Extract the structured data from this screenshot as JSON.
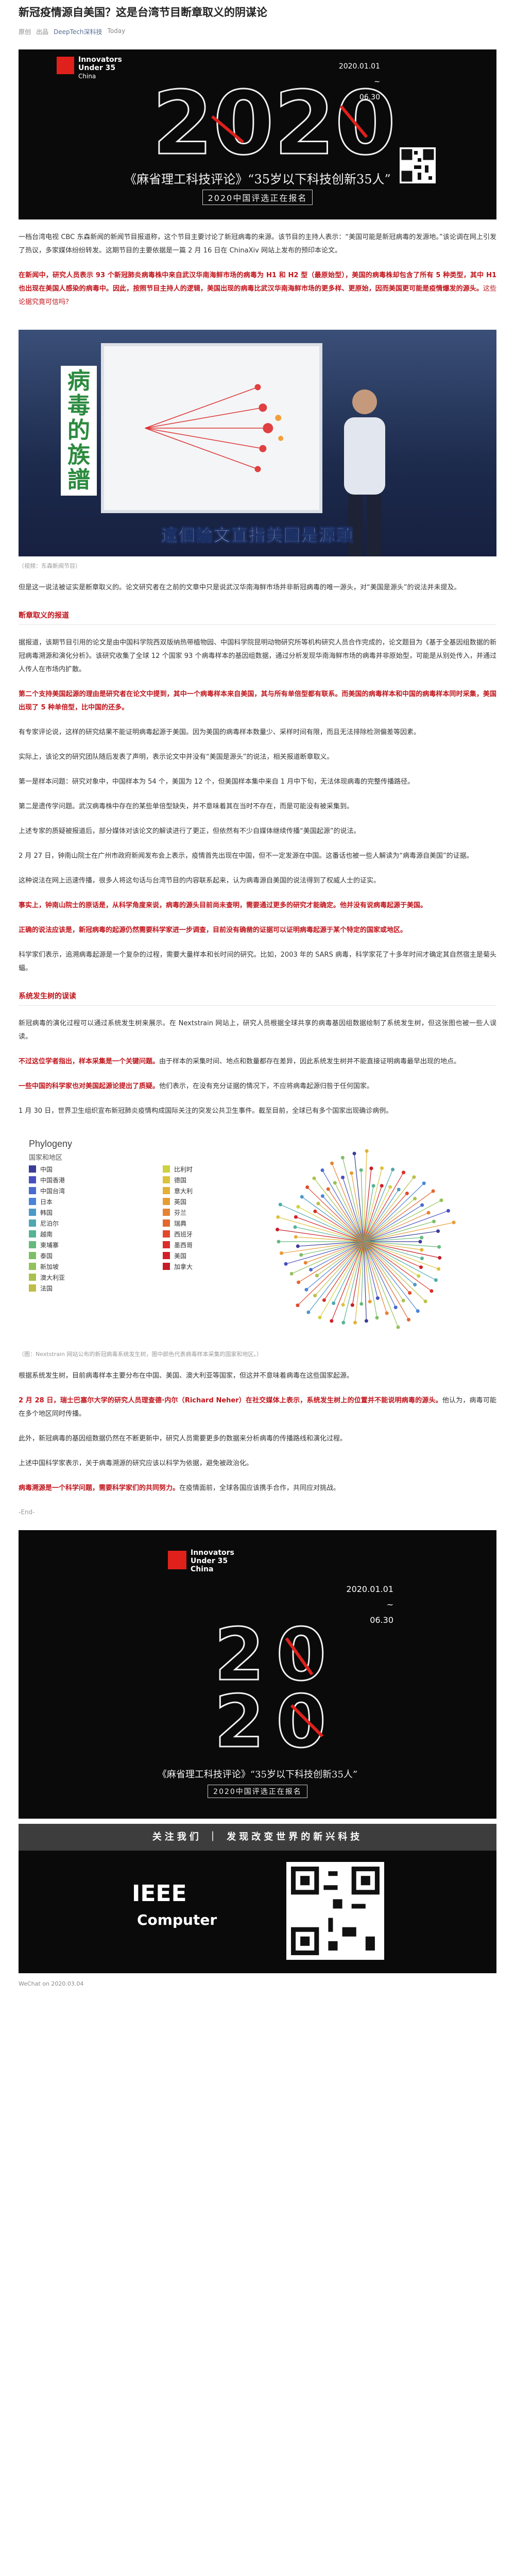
{
  "article": {
    "title": "新冠疫情源自美国？这是台湾节目断章取义的阴谋论",
    "meta": {
      "source": "原创",
      "author_prefix": "出品",
      "author": "DeepTech深科技",
      "date": "Today"
    }
  },
  "poster": {
    "brand_line1": "Innovators",
    "brand_line2": "Under 35",
    "brand_line3": "China",
    "date_start": "2020.01.01",
    "date_to": "~",
    "date_end": "06.30",
    "big_number": "2020",
    "cn_title": "《麻省理工科技评论》“35岁以下科技创新35人”",
    "cn_subtitle": "2020中国评选正在报名"
  },
  "paragraphs": {
    "p1": "一档台湾电视 CBC 东森新闻的新闻节目报道称，这个节目主要讨论了新冠病毒的来源。该节目的主持人表示：“美国可能是新冠病毒的发源地。”该论调在网上引发了热议，多家媒体纷纷转发。这期节目的主要依据是一篇 2 月 16 日在 ChinaXiv 网站上发布的预印本论文。",
    "p2_red": "在新闻中，研究人员表示 93 个新冠肺炎病毒株中来自武汉华南海鲜市场的病毒为 H1 和 H2 型（最原始型），美国的病毒株却包含了所有 5 种类型，其中 H1 也出现在美国人感染的病毒中。因此，按照节目主持人的逻辑，美国出现的病毒比武汉华南海鲜市场的更多样、更原始，因而美国更可能是疫情爆发的源头。",
    "p2_tail": "这些论据究竟可信吗？",
    "p3": "但是这一说法被证实是断章取义的。论文研究者在之前的文章中只是说武汉华南海鲜市场并非新冠病毒的唯一源头，对“美国是源头”的说法并未提及。",
    "section1": "断章取义的报道",
    "p4": "据报道，该期节目引用的论文是由中国科学院西双版纳热带植物园、中国科学院昆明动物研究所等机构研究人员合作完成的，论文题目为《基于全基因组数据的新冠病毒溯源和演化分析》。该研究收集了全球 12 个国家 93 个病毒样本的基因组数据，通过分析发现华南海鲜市场的病毒并非原始型，可能是从别处传入，并通过人传人在市场内扩散。",
    "p5_red": "第二个支持美国起源的理由是研究者在论文中提到，其中一个病毒样本来自美国，其与所有单倍型都有联系。而美国的病毒样本和中国的病毒样本同时采集，美国出现了 5 种单倍型，比中国的还多。",
    "p6": "有专家评论说，这样的研究结果不能证明病毒起源于美国。因为美国的病毒样本数量少、采样时间有限，而且无法排除检测偏差等因素。",
    "p7": "实际上，该论文的研究团队随后发表了声明，表示论文中并没有“美国是源头”的说法，相关报道断章取义。",
    "p8": "第一是样本问题：研究对象中，中国样本为 54 个，美国为 12 个，但美国样本集中来自 1 月中下旬，无法体现病毒的完整传播路径。",
    "p9": "第二是遗传学问题。武汉病毒株中存在的某些单倍型缺失，并不意味着其在当时不存在，而是可能没有被采集到。",
    "p10": "上述专家的质疑被报道后，部分媒体对该论文的解读进行了更正，但依然有不少自媒体继续传播“美国起源”的说法。",
    "p11": "2 月 27 日，钟南山院士在广州市政府新闻发布会上表示，疫情首先出现在中国，但不一定发源在中国。这番话也被一些人解读为“病毒源自美国”的证据。",
    "p12": "这种说法在网上迅速传播，很多人将这句话与台湾节目的内容联系起来，认为病毒源自美国的说法得到了权威人士的证实。",
    "p13_red": "事实上，钟南山院士的原话是，从科学角度来说，病毒的源头目前尚未查明，需要通过更多的研究才能确定。他并没有说病毒起源于美国。",
    "p14_red": "正确的说法应该是，新冠病毒的起源仍然需要科学家进一步调查，目前没有确凿的证据可以证明病毒起源于某个特定的国家或地区。",
    "p15": "科学家们表示，追溯病毒起源是一个复杂的过程，需要大量样本和长时间的研究。比如，2003 年的 SARS 病毒，科学家花了十多年时间才确定其自然宿主是菊头蝠。",
    "section2": "系统发生树的误读",
    "p16": "新冠病毒的演化过程可以通过系统发生树来展示。在 Nextstrain 网站上，研究人员根据全球共享的病毒基因组数据绘制了系统发生树，但这张图也被一些人误读。",
    "p17_red": "不过这位学者指出，样本采集是一个关键问题。",
    "p17_tail": "由于样本的采集时间、地点和数量都存在差异，因此系统发生树并不能直接证明病毒最早出现的地点。",
    "p18_red": "一些中国的科学家也对美国起源论提出了质疑。",
    "p18_tail": "他们表示，在没有充分证据的情况下，不应将病毒起源归咎于任何国家。",
    "p19": "1 月 30 日，世界卫生组织宣布新冠肺炎疫情构成国际关注的突发公共卫生事件。截至目前，全球已有多个国家出现确诊病例。",
    "img_caption_tv": "（视频：东森新闻节目）",
    "img_caption_phylo": "（图：Nextstrain 网站公布的新冠病毒系统发生树，图中颜色代表病毒样本采集的国家和地区。）",
    "p20": "根据系统发生树，目前病毒样本主要分布在中国、美国、澳大利亚等国家，但这并不意味着病毒在这些国家起源。",
    "p21_red": "2 月 28 日，瑞士巴塞尔大学的研究人员理查德·内尔（Richard Neher）在社交媒体上表示，系统发生树上的位置并不能说明病毒的源头。",
    "p21_tail": "他认为，病毒可能在多个地区同时传播。",
    "p22": "此外，新冠病毒的基因组数据仍然在不断更新中，研究人员需要更多的数据来分析病毒的传播路线和演化过程。",
    "p23": "上述中国科学家表示，关于病毒溯源的研究应该以科学为依据，避免被政治化。",
    "p24_red": "病毒溯源是一个科学问题，需要科学家们的共同努力。",
    "p24_tail": "在疫情面前，全球各国应该携手合作，共同应对挑战。",
    "end_mark": "-End-"
  },
  "phylogeny": {
    "title": "Phylogeny",
    "subtitle": "国家和地区",
    "legend_left": [
      "中国",
      "中国香港",
      "中国台湾",
      "日本",
      "韩国",
      "尼泊尔",
      "越南",
      "柬埔寨",
      "泰国",
      "新加坡",
      "澳大利亚",
      "法国"
    ],
    "legend_right": [
      "比利时",
      "德国",
      "意大利",
      "英国",
      "芬兰",
      "瑞典",
      "西班牙",
      "墨西哥",
      "美国",
      "加拿大"
    ],
    "colors_left": [
      "#3b3c98",
      "#4a4fbf",
      "#4a6ad0",
      "#4a84d8",
      "#4d99c7",
      "#4fa8b0",
      "#57b395",
      "#65b97d",
      "#7cbe67",
      "#94c15a",
      "#a9c14f",
      "#bdbe47"
    ],
    "colors_right": [
      "#ced140",
      "#dcc23c",
      "#e3b138",
      "#e69c35",
      "#e68332",
      "#e4672f",
      "#e0492c",
      "#db2d2a",
      "#d31f28",
      "#c41d27"
    ]
  },
  "footer": {
    "follow_text": "关注我们 ｜ 发现改变世界的新兴科技",
    "ieee_brand": "IEEE",
    "ieee_sub": "Computer",
    "bottom_meta": "WeChat on 2020.03.04"
  }
}
